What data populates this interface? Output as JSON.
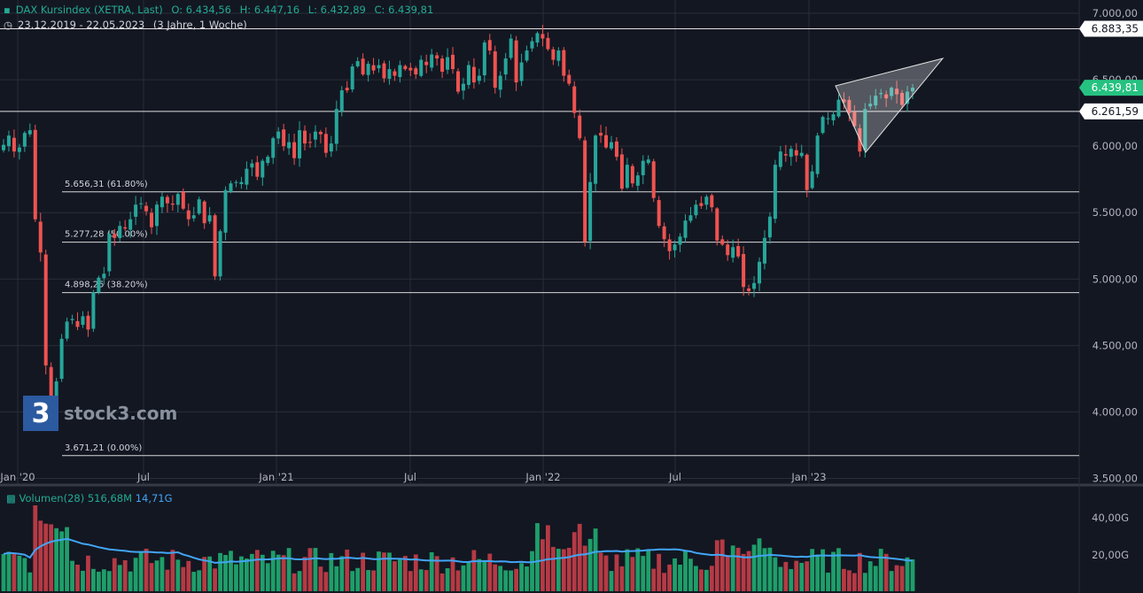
{
  "header": {
    "title": "DAX Kursindex (XETRA, Last)",
    "open": "O: 6.434,56",
    "high": "H: 6.447,16",
    "low": "L: 6.432,89",
    "close": "C: 6.439,81",
    "range": "23.12.2019 - 22.05.2023",
    "interval": "(3 Jahre, 1 Woche)"
  },
  "volume_header": {
    "label": "Volumen(28)",
    "value": "516,68M",
    "ma_value": "14,71G"
  },
  "watermark": "stock3.com",
  "colors": {
    "background": "#131722",
    "up": "#26a69a",
    "down": "#ef5350",
    "up_vol": "#1e9e6a",
    "down_vol": "#b53a44",
    "vol_ma": "#42a5f5",
    "grid": "#2a2e39",
    "text": "#d1d4dc",
    "last_price_bg": "#26c281"
  },
  "chart_data": {
    "type": "candlestick",
    "title": "DAX Kursindex (XETRA, Last)",
    "y_axis_ticks": [
      "7.000,00",
      "6.500,00",
      "6.000,00",
      "5.500,00",
      "5.000,00",
      "4.500,00",
      "4.000,00",
      "3.500,00"
    ],
    "y_ticks_values": [
      7000,
      6500,
      6000,
      5500,
      5000,
      4500,
      4000,
      3500
    ],
    "ylim": [
      3450,
      7100
    ],
    "x_axis_ticks": [
      "Jan '20",
      "Jul",
      "Jan '21",
      "Jul",
      "Jan '22",
      "Jul",
      "Jan '23"
    ],
    "price_labels": [
      {
        "label": "6.883,35",
        "value": 6883.35,
        "style": "white"
      },
      {
        "label": "6.439,81",
        "value": 6439.81,
        "style": "green"
      },
      {
        "label": "6.261,59",
        "value": 6261.59,
        "style": "white"
      }
    ],
    "fibonacci_levels": [
      {
        "label": "5.656,31 (61.80%)",
        "value": 5656.31
      },
      {
        "label": "5.277,28 (50.00%)",
        "value": 5277.28
      },
      {
        "label": "4.898,25 (38.20%)",
        "value": 4898.25
      },
      {
        "label": "3.671,21 (0.00%)",
        "value": 3671.21
      }
    ],
    "horizontal_lines": [
      6883.35,
      6261.59
    ],
    "triangle_pattern": {
      "points": [
        [
          "2023-03-06",
          6380
        ],
        [
          "2023-05-29",
          6600
        ],
        [
          "2023-03-27",
          5890
        ]
      ]
    },
    "closes": [
      6010,
      6080,
      5960,
      5990,
      6100,
      6120,
      5450,
      5200,
      4350,
      4100,
      4230,
      4550,
      4680,
      4700,
      4640,
      4720,
      4620,
      4900,
      5010,
      5040,
      5340,
      5310,
      5400,
      5380,
      5450,
      5560,
      5570,
      5510,
      5390,
      5560,
      5620,
      5570,
      5560,
      5640,
      5530,
      5450,
      5480,
      5600,
      5420,
      5480,
      5020,
      5360,
      5670,
      5720,
      5730,
      5730,
      5830,
      5870,
      5770,
      5890,
      5920,
      6060,
      6110,
      6000,
      6030,
      5910,
      6120,
      6020,
      6030,
      6110,
      6090,
      5950,
      6020,
      6280,
      6420,
      6420,
      6600,
      6640,
      6540,
      6620,
      6570,
      6610,
      6510,
      6580,
      6530,
      6610,
      6580,
      6570,
      6540,
      6650,
      6610,
      6690,
      6660,
      6560,
      6670,
      6580,
      6410,
      6470,
      6610,
      6480,
      6530,
      6780,
      6720,
      6440,
      6530,
      6660,
      6810,
      6480,
      6630,
      6720,
      6790,
      6850,
      6810,
      6730,
      6650,
      6720,
      6530,
      6470,
      6250,
      6060,
      5280,
      5730,
      6080,
      6080,
      5990,
      6030,
      5920,
      5680,
      5860,
      5720,
      5780,
      5890,
      5900,
      5610,
      5400,
      5300,
      5210,
      5260,
      5320,
      5440,
      5480,
      5560,
      5550,
      5620,
      5540,
      5290,
      5260,
      5180,
      5240,
      5170,
      4940,
      4910,
      4970,
      5130,
      5310,
      5470,
      5860,
      5960,
      5930,
      5980,
      5930,
      5950,
      5670,
      5810,
      6080,
      6220,
      6210,
      6240,
      6350,
      6330,
      6250,
      6150,
      5960,
      6280,
      6320,
      6380,
      6400,
      6360,
      6440,
      6390,
      6310,
      6410,
      6440
    ]
  }
}
